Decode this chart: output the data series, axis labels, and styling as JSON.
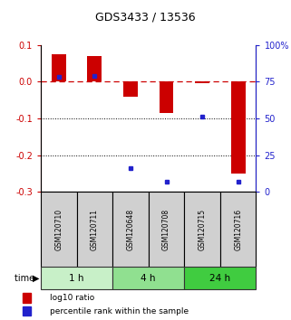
{
  "title": "GDS3433 / 13536",
  "samples": [
    "GSM120710",
    "GSM120711",
    "GSM120648",
    "GSM120708",
    "GSM120715",
    "GSM120716"
  ],
  "log10_ratio": [
    0.075,
    0.07,
    -0.04,
    -0.085,
    -0.005,
    -0.25
  ],
  "percentile_rank": [
    78,
    79,
    16.5,
    7,
    51.5,
    7
  ],
  "time_groups": [
    {
      "label": "1 h",
      "start": 0,
      "end": 2,
      "color": "#c8f0c8"
    },
    {
      "label": "4 h",
      "start": 2,
      "end": 4,
      "color": "#90e090"
    },
    {
      "label": "24 h",
      "start": 4,
      "end": 6,
      "color": "#40cc40"
    }
  ],
  "ylim_left": [
    -0.3,
    0.1
  ],
  "ylim_right": [
    0,
    100
  ],
  "yticks_left": [
    0.1,
    0.0,
    -0.1,
    -0.2,
    -0.3
  ],
  "yticks_right": [
    100,
    75,
    50,
    25,
    0
  ],
  "bar_color": "#cc0000",
  "dot_color": "#2222cc",
  "hline_color": "#cc0000",
  "background_color": "#ffffff",
  "label_log10": "log10 ratio",
  "label_pct": "percentile rank within the sample",
  "bar_width": 0.4
}
